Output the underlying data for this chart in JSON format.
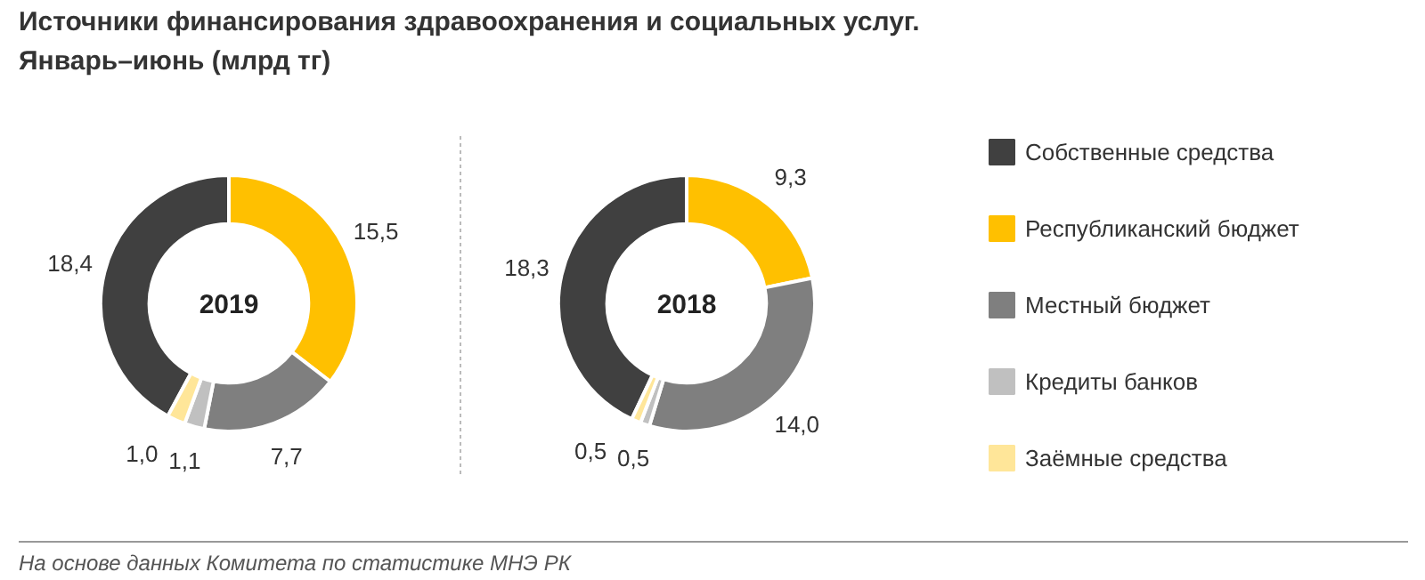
{
  "chart_data": {
    "type": "donut",
    "title": "Источники финансирования здравоохранения и социальных услуг.",
    "subtitle": "Январь–июнь (млрд тг)",
    "annotations": [
      "На основе данных Комитета по статистике МНЭ РК"
    ],
    "categories": [
      "Собственные средства",
      "Республиканский бюджет",
      "Местный бюджет",
      "Кредиты банков",
      "Заёмные средства"
    ],
    "colors": [
      "#404040",
      "#ffc000",
      "#7f7f7f",
      "#c0c0c0",
      "#ffe699"
    ],
    "series": [
      {
        "name": "2019",
        "values": [
          18.4,
          15.5,
          7.7,
          1.1,
          1.0
        ],
        "value_labels": [
          "18,4",
          "15,5",
          "7,7",
          "1,1",
          "1,0"
        ]
      },
      {
        "name": "2018",
        "values": [
          18.3,
          9.3,
          14.0,
          0.5,
          0.5
        ],
        "value_labels": [
          "18,3",
          "9,3",
          "14,0",
          "0,5",
          "0,5"
        ]
      }
    ],
    "legend": "right"
  }
}
